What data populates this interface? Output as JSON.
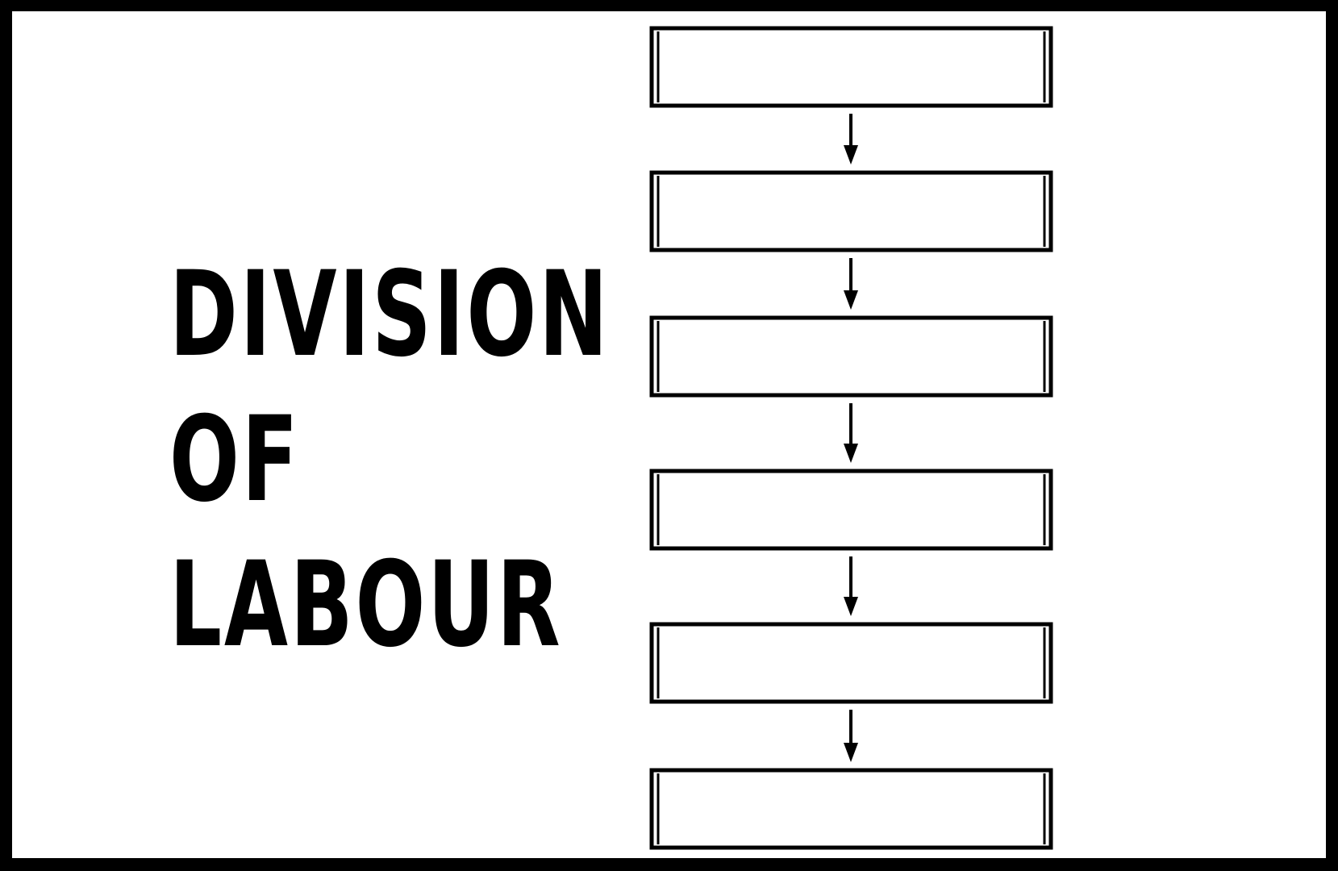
{
  "title": {
    "line1": "DIVISION",
    "line2": "OF",
    "line3": "LABOUR"
  },
  "flowchart": {
    "box_count": 6,
    "arrow_count": 5,
    "box_labels": [
      "",
      "",
      "",
      "",
      "",
      ""
    ]
  },
  "colors": {
    "background": "#ffffff",
    "border": "#000000",
    "stroke": "#000000"
  }
}
